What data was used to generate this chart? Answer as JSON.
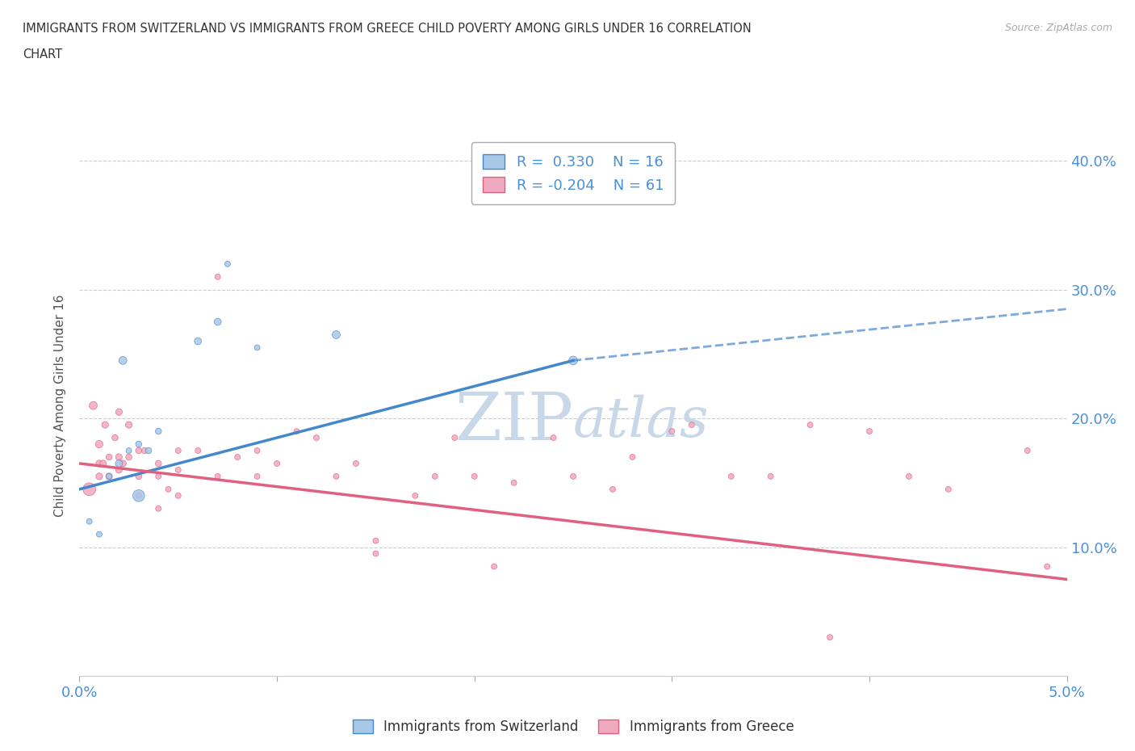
{
  "title": "IMMIGRANTS FROM SWITZERLAND VS IMMIGRANTS FROM GREECE CHILD POVERTY AMONG GIRLS UNDER 16 CORRELATION\nCHART",
  "source": "Source: ZipAtlas.com",
  "ylabel": "Child Poverty Among Girls Under 16",
  "xlim": [
    0.0,
    0.05
  ],
  "ylim": [
    0.0,
    0.42
  ],
  "xticks": [
    0.0,
    0.01,
    0.02,
    0.03,
    0.04,
    0.05
  ],
  "xtick_labels": [
    "0.0%",
    "",
    "",
    "",
    "",
    "5.0%"
  ],
  "yticks": [
    0.0,
    0.1,
    0.2,
    0.3,
    0.4
  ],
  "ytick_labels": [
    "",
    "10.0%",
    "20.0%",
    "30.0%",
    "40.0%"
  ],
  "r_switzerland": 0.33,
  "n_switzerland": 16,
  "r_greece": -0.204,
  "n_greece": 61,
  "color_switzerland": "#a8c8e8",
  "color_greece": "#f0aabf",
  "line_switzerland": "#4488cc",
  "line_greece": "#e06080",
  "watermark_color": "#c8d8e8",
  "background_color": "#ffffff",
  "grid_color": "#cccccc",
  "sw_trend_x0": 0.0,
  "sw_trend_y0": 0.145,
  "sw_trend_x1": 0.025,
  "sw_trend_y1": 0.245,
  "sw_trend_xdash": 0.025,
  "sw_trend_ydash": 0.245,
  "sw_trend_xend": 0.05,
  "sw_trend_yend": 0.285,
  "gr_trend_x0": 0.0,
  "gr_trend_y0": 0.165,
  "gr_trend_x1": 0.05,
  "gr_trend_y1": 0.075,
  "switzerland_x": [
    0.0005,
    0.001,
    0.0015,
    0.002,
    0.0025,
    0.003,
    0.003,
    0.0035,
    0.004,
    0.006,
    0.007,
    0.0075,
    0.009,
    0.013,
    0.025,
    0.0022
  ],
  "switzerland_y": [
    0.12,
    0.11,
    0.155,
    0.165,
    0.175,
    0.18,
    0.14,
    0.175,
    0.19,
    0.26,
    0.275,
    0.32,
    0.255,
    0.265,
    0.245,
    0.245
  ],
  "switzerland_sizes": [
    25,
    25,
    25,
    40,
    25,
    30,
    110,
    30,
    30,
    40,
    40,
    25,
    25,
    50,
    60,
    50
  ],
  "greece_x": [
    0.0005,
    0.0007,
    0.001,
    0.001,
    0.001,
    0.0012,
    0.0013,
    0.0015,
    0.0015,
    0.0018,
    0.002,
    0.002,
    0.002,
    0.0022,
    0.0025,
    0.0025,
    0.003,
    0.003,
    0.003,
    0.0033,
    0.004,
    0.004,
    0.004,
    0.0045,
    0.005,
    0.005,
    0.005,
    0.006,
    0.007,
    0.007,
    0.008,
    0.009,
    0.009,
    0.01,
    0.011,
    0.012,
    0.013,
    0.014,
    0.015,
    0.015,
    0.017,
    0.018,
    0.019,
    0.02,
    0.021,
    0.022,
    0.024,
    0.025,
    0.027,
    0.028,
    0.03,
    0.031,
    0.033,
    0.035,
    0.037,
    0.038,
    0.04,
    0.042,
    0.044,
    0.048,
    0.049
  ],
  "greece_y": [
    0.145,
    0.21,
    0.18,
    0.155,
    0.165,
    0.165,
    0.195,
    0.155,
    0.17,
    0.185,
    0.16,
    0.205,
    0.17,
    0.165,
    0.17,
    0.195,
    0.155,
    0.175,
    0.14,
    0.175,
    0.165,
    0.13,
    0.155,
    0.145,
    0.16,
    0.175,
    0.14,
    0.175,
    0.31,
    0.155,
    0.17,
    0.155,
    0.175,
    0.165,
    0.19,
    0.185,
    0.155,
    0.165,
    0.105,
    0.095,
    0.14,
    0.155,
    0.185,
    0.155,
    0.085,
    0.15,
    0.185,
    0.155,
    0.145,
    0.17,
    0.19,
    0.195,
    0.155,
    0.155,
    0.195,
    0.03,
    0.19,
    0.155,
    0.145,
    0.175,
    0.085
  ],
  "greece_sizes": [
    130,
    50,
    45,
    35,
    35,
    35,
    35,
    35,
    30,
    30,
    35,
    35,
    35,
    35,
    30,
    35,
    30,
    30,
    30,
    30,
    30,
    25,
    25,
    25,
    25,
    25,
    25,
    25,
    25,
    25,
    25,
    25,
    25,
    25,
    25,
    25,
    25,
    25,
    25,
    25,
    25,
    25,
    25,
    25,
    25,
    25,
    25,
    25,
    25,
    25,
    25,
    25,
    25,
    25,
    25,
    25,
    25,
    25,
    25,
    25,
    25
  ]
}
